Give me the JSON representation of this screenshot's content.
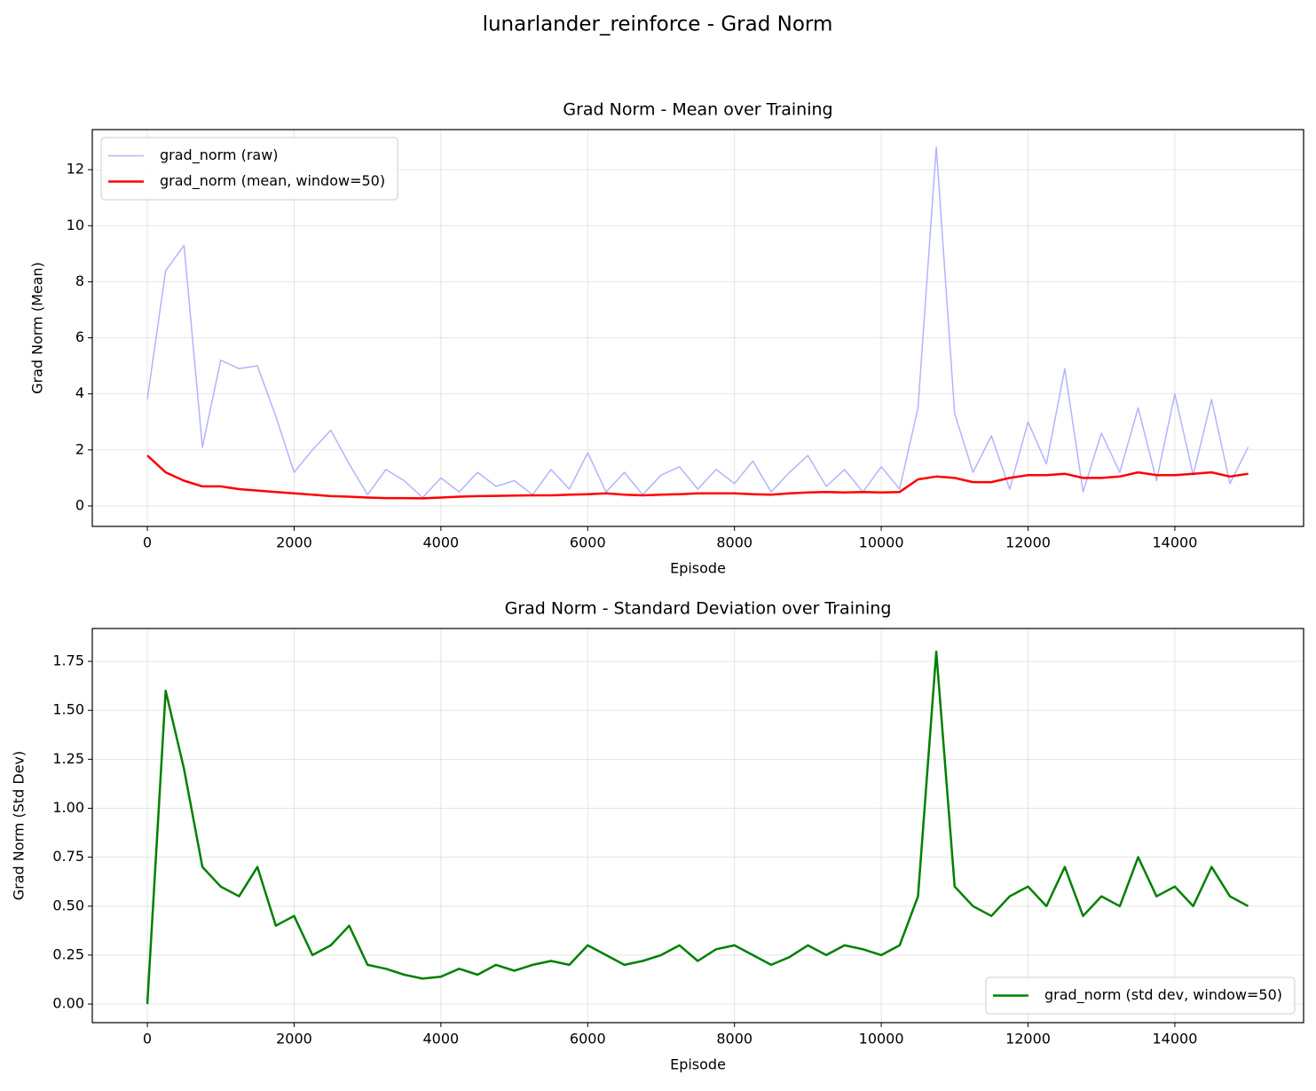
{
  "title": "lunarlander_reinforce - Grad Norm",
  "chart_data": [
    {
      "type": "line",
      "title": "Grad Norm - Mean over Training",
      "xlabel": "Episode",
      "ylabel": "Grad Norm (Mean)",
      "x": [
        0,
        250,
        500,
        750,
        1000,
        1250,
        1500,
        1750,
        2000,
        2250,
        2500,
        2750,
        3000,
        3250,
        3500,
        3750,
        4000,
        4250,
        4500,
        4750,
        5000,
        5250,
        5500,
        5750,
        6000,
        6250,
        6500,
        6750,
        7000,
        7250,
        7500,
        7750,
        8000,
        8250,
        8500,
        8750,
        9000,
        9250,
        9500,
        9750,
        10000,
        10250,
        10500,
        10750,
        11000,
        11250,
        11500,
        11750,
        12000,
        12250,
        12500,
        12750,
        13000,
        13250,
        13500,
        13750,
        14000,
        14250,
        14500,
        14750,
        15000
      ],
      "series": [
        {
          "name": "grad_norm (raw)",
          "color": "#b3b3ff",
          "width": 1.5,
          "values": [
            3.8,
            8.4,
            9.3,
            2.1,
            5.2,
            4.9,
            5.0,
            3.2,
            1.2,
            2.0,
            2.7,
            1.5,
            0.4,
            1.3,
            0.9,
            0.3,
            1.0,
            0.5,
            1.2,
            0.7,
            0.9,
            0.4,
            1.3,
            0.6,
            1.9,
            0.5,
            1.2,
            0.4,
            1.1,
            1.4,
            0.6,
            1.3,
            0.8,
            1.6,
            0.5,
            1.2,
            1.8,
            0.7,
            1.3,
            0.5,
            1.4,
            0.6,
            3.5,
            12.8,
            3.3,
            1.2,
            2.5,
            0.6,
            3.0,
            1.5,
            4.9,
            0.5,
            2.6,
            1.2,
            3.5,
            0.9,
            4.0,
            1.1,
            3.8,
            0.8,
            2.1
          ]
        },
        {
          "name": "grad_norm (mean, window=50)",
          "color": "#ff0000",
          "width": 2.5,
          "values": [
            1.8,
            1.2,
            0.9,
            0.7,
            0.7,
            0.6,
            0.55,
            0.5,
            0.45,
            0.4,
            0.35,
            0.33,
            0.3,
            0.28,
            0.28,
            0.27,
            0.3,
            0.33,
            0.35,
            0.36,
            0.37,
            0.38,
            0.38,
            0.4,
            0.42,
            0.45,
            0.4,
            0.38,
            0.4,
            0.42,
            0.45,
            0.45,
            0.45,
            0.42,
            0.4,
            0.45,
            0.48,
            0.5,
            0.48,
            0.5,
            0.48,
            0.5,
            0.95,
            1.05,
            1.0,
            0.85,
            0.85,
            1.0,
            1.1,
            1.1,
            1.15,
            1.0,
            1.0,
            1.05,
            1.2,
            1.1,
            1.1,
            1.15,
            1.2,
            1.05,
            1.15
          ]
        }
      ],
      "xlim": [
        -750,
        15754
      ],
      "ylim": [
        -0.73,
        13.43
      ],
      "xticks": [
        0,
        2000,
        4000,
        6000,
        8000,
        10000,
        12000,
        14000
      ],
      "yticks": [
        0,
        2,
        4,
        6,
        8,
        10,
        12
      ],
      "grid": true,
      "legend": "upper left"
    },
    {
      "type": "line",
      "title": "Grad Norm - Standard Deviation over Training",
      "xlabel": "Episode",
      "ylabel": "Grad Norm (Std Dev)",
      "x": [
        0,
        250,
        500,
        750,
        1000,
        1250,
        1500,
        1750,
        2000,
        2250,
        2500,
        2750,
        3000,
        3250,
        3500,
        3750,
        4000,
        4250,
        4500,
        4750,
        5000,
        5250,
        5500,
        5750,
        6000,
        6250,
        6500,
        6750,
        7000,
        7250,
        7500,
        7750,
        8000,
        8250,
        8500,
        8750,
        9000,
        9250,
        9500,
        9750,
        10000,
        10250,
        10500,
        10750,
        11000,
        11250,
        11500,
        11750,
        12000,
        12250,
        12500,
        12750,
        13000,
        13250,
        13500,
        13750,
        14000,
        14250,
        14500,
        14750,
        15000
      ],
      "series": [
        {
          "name": "grad_norm (std dev, window=50)",
          "color": "#008000",
          "width": 2.5,
          "values": [
            0.0,
            1.6,
            1.2,
            0.7,
            0.6,
            0.55,
            0.7,
            0.4,
            0.45,
            0.25,
            0.3,
            0.4,
            0.2,
            0.18,
            0.15,
            0.13,
            0.14,
            0.18,
            0.15,
            0.2,
            0.17,
            0.2,
            0.22,
            0.2,
            0.3,
            0.25,
            0.2,
            0.22,
            0.25,
            0.3,
            0.22,
            0.28,
            0.3,
            0.25,
            0.2,
            0.24,
            0.3,
            0.25,
            0.3,
            0.28,
            0.25,
            0.3,
            0.55,
            1.8,
            0.6,
            0.5,
            0.45,
            0.55,
            0.6,
            0.5,
            0.7,
            0.45,
            0.55,
            0.5,
            0.75,
            0.55,
            0.6,
            0.5,
            0.7,
            0.55,
            0.5
          ]
        }
      ],
      "xlim": [
        -750,
        15754
      ],
      "ylim": [
        -0.095,
        1.918
      ],
      "xticks": [
        0,
        2000,
        4000,
        6000,
        8000,
        10000,
        12000,
        14000
      ],
      "yticks": [
        {
          "value": 0,
          "label": "0.00"
        },
        {
          "value": 0.25,
          "label": "0.25"
        },
        {
          "value": 0.5,
          "label": "0.50"
        },
        {
          "value": 0.75,
          "label": "0.75"
        },
        {
          "value": 1,
          "label": "1.00"
        },
        {
          "value": 1.25,
          "label": "1.25"
        },
        {
          "value": 1.5,
          "label": "1.50"
        },
        {
          "value": 1.75,
          "label": "1.75"
        }
      ],
      "grid": true,
      "legend": "lower right"
    }
  ]
}
